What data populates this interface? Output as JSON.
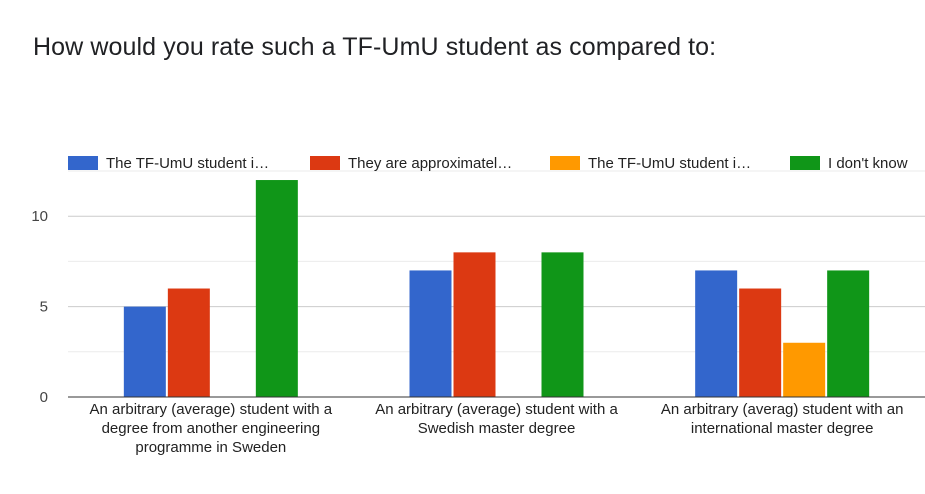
{
  "chart_data": {
    "type": "bar",
    "title": "How would you rate such a TF-UmU student as compared to:",
    "categories": [
      [
        "An arbitrary (average) student with a",
        "degree from another engineering",
        "programme in Sweden"
      ],
      [
        "An arbitrary (average) student with a",
        "Swedish master degree"
      ],
      [
        "An arbitrary (averag) student with an",
        "international master degree"
      ]
    ],
    "series": [
      {
        "name": "The TF-UmU student i…",
        "color": "#3366cc",
        "values": [
          5,
          7,
          7
        ]
      },
      {
        "name": "They are approximatel…",
        "color": "#dc3912",
        "values": [
          6,
          8,
          6
        ]
      },
      {
        "name": "The TF-UmU student i…",
        "color": "#ff9900",
        "values": [
          0,
          0,
          3
        ]
      },
      {
        "name": "I don't know",
        "color": "#109618",
        "values": [
          12,
          8,
          7
        ]
      }
    ],
    "ylim": [
      0,
      12.5
    ],
    "yticks": [
      0,
      5,
      10
    ],
    "grid": true,
    "legend_position": "top",
    "xlabel": "",
    "ylabel": ""
  }
}
